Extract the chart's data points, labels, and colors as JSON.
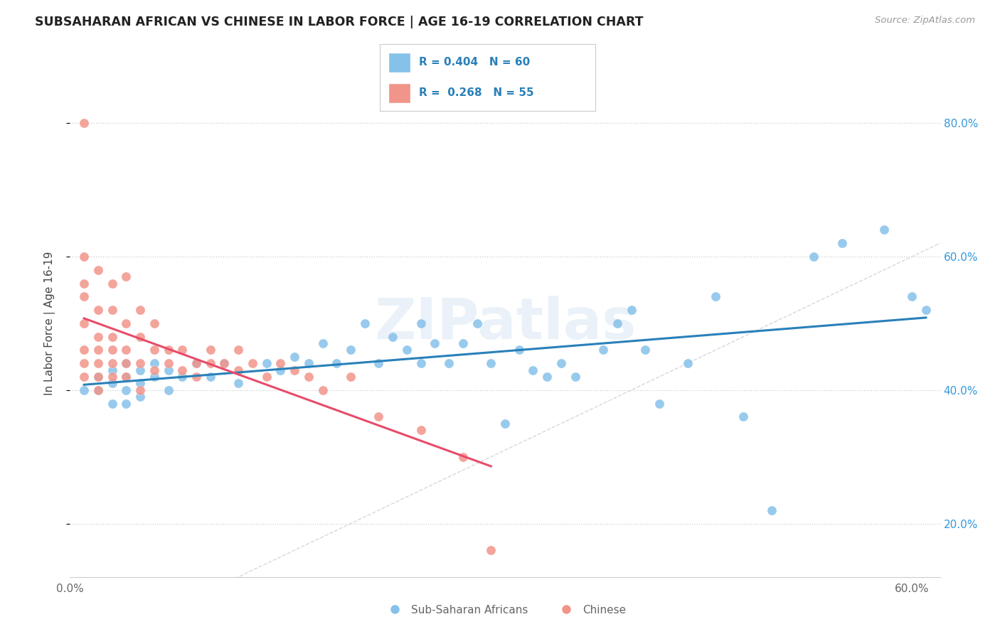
{
  "title": "SUBSAHARAN AFRICAN VS CHINESE IN LABOR FORCE | AGE 16-19 CORRELATION CHART",
  "source": "Source: ZipAtlas.com",
  "ylabel": "In Labor Force | Age 16-19",
  "xlim": [
    0.0,
    0.62
  ],
  "ylim": [
    0.12,
    0.88
  ],
  "x_ticks": [
    0.0,
    0.1,
    0.2,
    0.3,
    0.4,
    0.5,
    0.6
  ],
  "x_tick_labels": [
    "0.0%",
    "",
    "",
    "",
    "",
    "",
    "60.0%"
  ],
  "y_ticks_right": [
    0.2,
    0.4,
    0.6,
    0.8
  ],
  "y_tick_labels_right": [
    "20.0%",
    "40.0%",
    "60.0%",
    "80.0%"
  ],
  "blue_color": "#85c1e9",
  "pink_color": "#f1948a",
  "blue_line_color": "#2980b9",
  "pink_line_color": "#e74c6a",
  "diagonal_color": "#d5d8dc",
  "watermark": "ZIPatlas",
  "blue_scatter_x": [
    0.01,
    0.02,
    0.02,
    0.03,
    0.03,
    0.03,
    0.04,
    0.04,
    0.04,
    0.04,
    0.05,
    0.05,
    0.05,
    0.06,
    0.06,
    0.07,
    0.07,
    0.08,
    0.09,
    0.1,
    0.11,
    0.12,
    0.14,
    0.15,
    0.16,
    0.17,
    0.18,
    0.19,
    0.2,
    0.21,
    0.22,
    0.23,
    0.24,
    0.25,
    0.25,
    0.26,
    0.27,
    0.28,
    0.29,
    0.3,
    0.31,
    0.32,
    0.33,
    0.34,
    0.35,
    0.36,
    0.38,
    0.39,
    0.4,
    0.41,
    0.42,
    0.44,
    0.46,
    0.48,
    0.5,
    0.53,
    0.55,
    0.58,
    0.6,
    0.61
  ],
  "blue_scatter_y": [
    0.4,
    0.42,
    0.4,
    0.43,
    0.41,
    0.38,
    0.44,
    0.42,
    0.4,
    0.38,
    0.43,
    0.41,
    0.39,
    0.44,
    0.42,
    0.43,
    0.4,
    0.42,
    0.44,
    0.42,
    0.44,
    0.41,
    0.44,
    0.43,
    0.45,
    0.44,
    0.47,
    0.44,
    0.46,
    0.5,
    0.44,
    0.48,
    0.46,
    0.5,
    0.44,
    0.47,
    0.44,
    0.47,
    0.5,
    0.44,
    0.35,
    0.46,
    0.43,
    0.42,
    0.44,
    0.42,
    0.46,
    0.5,
    0.52,
    0.46,
    0.38,
    0.44,
    0.54,
    0.36,
    0.22,
    0.6,
    0.62,
    0.64,
    0.54,
    0.52
  ],
  "pink_scatter_x": [
    0.01,
    0.01,
    0.01,
    0.01,
    0.01,
    0.01,
    0.01,
    0.01,
    0.02,
    0.02,
    0.02,
    0.02,
    0.02,
    0.02,
    0.02,
    0.03,
    0.03,
    0.03,
    0.03,
    0.03,
    0.03,
    0.04,
    0.04,
    0.04,
    0.04,
    0.04,
    0.05,
    0.05,
    0.05,
    0.05,
    0.06,
    0.06,
    0.06,
    0.07,
    0.07,
    0.08,
    0.08,
    0.09,
    0.09,
    0.1,
    0.1,
    0.11,
    0.12,
    0.12,
    0.13,
    0.14,
    0.15,
    0.16,
    0.17,
    0.18,
    0.2,
    0.22,
    0.25,
    0.28,
    0.3
  ],
  "pink_scatter_y": [
    0.8,
    0.6,
    0.56,
    0.54,
    0.5,
    0.46,
    0.44,
    0.42,
    0.58,
    0.52,
    0.48,
    0.46,
    0.44,
    0.42,
    0.4,
    0.56,
    0.52,
    0.48,
    0.46,
    0.44,
    0.42,
    0.57,
    0.5,
    0.46,
    0.44,
    0.42,
    0.52,
    0.48,
    0.44,
    0.4,
    0.5,
    0.46,
    0.43,
    0.46,
    0.44,
    0.46,
    0.43,
    0.44,
    0.42,
    0.46,
    0.44,
    0.44,
    0.46,
    0.43,
    0.44,
    0.42,
    0.44,
    0.43,
    0.42,
    0.4,
    0.42,
    0.36,
    0.34,
    0.3,
    0.16
  ]
}
